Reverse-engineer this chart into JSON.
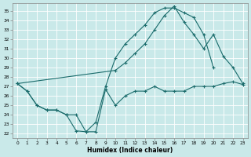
{
  "xlabel": "Humidex (Indice chaleur)",
  "xlim": [
    -0.5,
    23.5
  ],
  "ylim": [
    21.5,
    35.8
  ],
  "xticks": [
    0,
    1,
    2,
    3,
    4,
    5,
    6,
    7,
    8,
    9,
    10,
    11,
    12,
    13,
    14,
    15,
    16,
    17,
    18,
    19,
    20,
    21,
    22,
    23
  ],
  "yticks": [
    22,
    23,
    24,
    25,
    26,
    27,
    28,
    29,
    30,
    31,
    32,
    33,
    34,
    35
  ],
  "background_color": "#c9e9e9",
  "grid_color": "#b0d8d8",
  "line_color": "#1a6b6b",
  "line1_x": [
    0,
    1,
    2,
    3,
    4,
    5,
    6,
    7,
    8,
    9,
    10,
    11,
    12,
    13,
    14,
    15,
    16,
    17,
    18,
    19,
    20,
    21,
    22,
    23
  ],
  "line1_y": [
    27.3,
    26.5,
    25.0,
    24.5,
    24.5,
    24.0,
    22.3,
    22.2,
    22.2,
    26.7,
    25.0,
    26.0,
    26.5,
    26.5,
    27.0,
    26.5,
    26.5,
    26.5,
    27.0,
    27.0,
    27.0,
    27.3,
    27.5,
    27.2
  ],
  "line2_x": [
    0,
    1,
    2,
    3,
    4,
    5,
    6,
    7,
    8,
    9,
    10,
    11,
    12,
    13,
    14,
    15,
    16,
    17,
    18,
    19,
    20,
    21,
    22,
    23
  ],
  "line2_y": [
    27.3,
    26.5,
    25.0,
    24.5,
    24.5,
    24.0,
    24.0,
    22.2,
    23.2,
    27.0,
    30.0,
    31.5,
    32.5,
    33.5,
    34.8,
    35.3,
    35.3,
    34.8,
    34.3,
    32.5,
    29.0,
    null,
    null,
    null
  ],
  "line3_x": [
    0,
    10,
    11,
    12,
    13,
    14,
    15,
    16,
    17,
    18,
    19,
    20,
    21,
    22,
    23
  ],
  "line3_y": [
    27.3,
    28.7,
    29.5,
    30.5,
    31.5,
    33.0,
    34.5,
    35.5,
    33.8,
    32.5,
    31.0,
    32.5,
    30.2,
    29.0,
    27.3
  ]
}
